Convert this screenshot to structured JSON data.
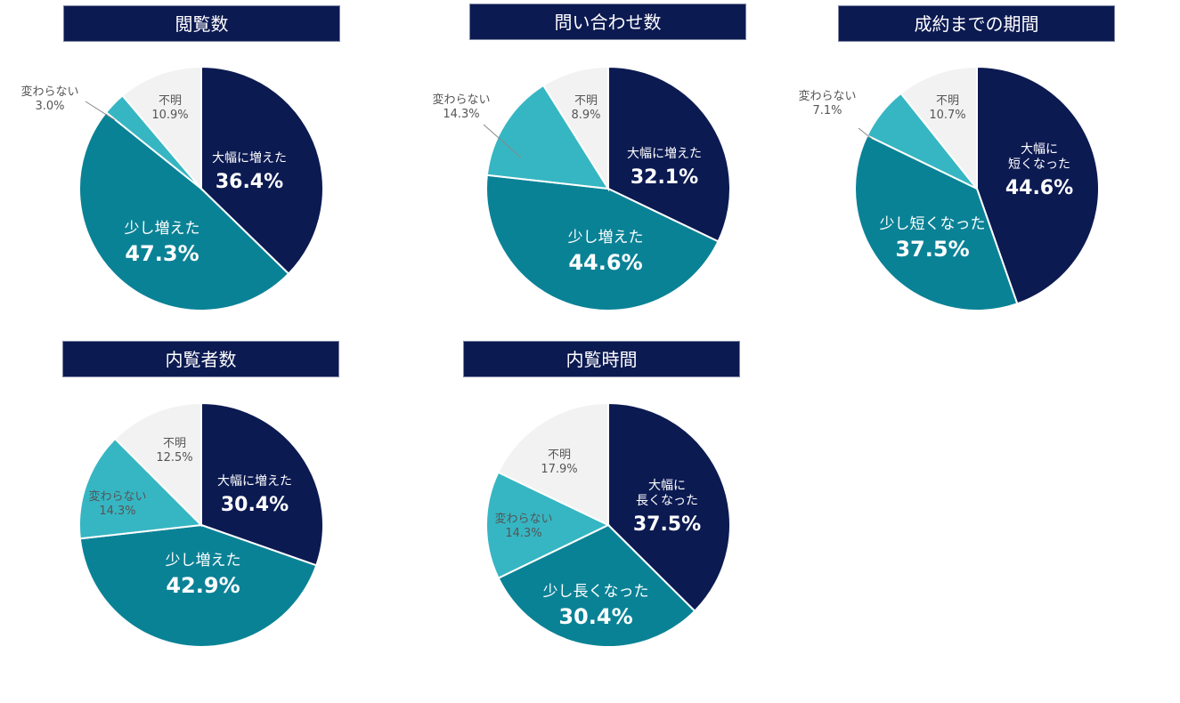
{
  "colors": {
    "title_bg": "#0c1a52",
    "large_increase": "#0c1a52",
    "slight_increase": "#0a8296",
    "no_change": "#36b6c3",
    "unknown": "#f2f2f2",
    "label_dark": "#555555",
    "label_light": "#ffffff"
  },
  "chart_data": [
    {
      "type": "pie",
      "title": "閲覧数",
      "slices": [
        {
          "label": "大幅に増えた",
          "value": 36.4,
          "display": "36.4%"
        },
        {
          "label": "少し増えた",
          "value": 47.3,
          "display": "47.3%"
        },
        {
          "label": "変わらない",
          "value": 3.0,
          "display": "3.0%"
        },
        {
          "label": "不明",
          "value": 10.9,
          "display": "10.9%"
        }
      ]
    },
    {
      "type": "pie",
      "title": "問い合わせ数",
      "slices": [
        {
          "label": "大幅に増えた",
          "value": 32.1,
          "display": "32.1%"
        },
        {
          "label": "少し増えた",
          "value": 44.6,
          "display": "44.6%"
        },
        {
          "label": "変わらない",
          "value": 14.3,
          "display": "14.3%"
        },
        {
          "label": "不明",
          "value": 8.9,
          "display": "8.9%"
        }
      ]
    },
    {
      "type": "pie",
      "title": "成約までの期間",
      "slices": [
        {
          "label": "大幅に\n短くなった",
          "value": 44.6,
          "display": "44.6%"
        },
        {
          "label": "少し短くなった",
          "value": 37.5,
          "display": "37.5%"
        },
        {
          "label": "変わらない",
          "value": 7.1,
          "display": "7.1%"
        },
        {
          "label": "不明",
          "value": 10.7,
          "display": "10.7%"
        }
      ]
    },
    {
      "type": "pie",
      "title": "内覧者数",
      "slices": [
        {
          "label": "大幅に増えた",
          "value": 30.4,
          "display": "30.4%"
        },
        {
          "label": "少し増えた",
          "value": 42.9,
          "display": "42.9%"
        },
        {
          "label": "変わらない",
          "value": 14.3,
          "display": "14.3%"
        },
        {
          "label": "不明",
          "value": 12.5,
          "display": "12.5%"
        }
      ]
    },
    {
      "type": "pie",
      "title": "内覧時間",
      "slices": [
        {
          "label": "大幅に\n長くなった",
          "value": 37.5,
          "display": "37.5%"
        },
        {
          "label": "少し長くなった",
          "value": 30.4,
          "display": "30.4%"
        },
        {
          "label": "変わらない",
          "value": 14.3,
          "display": "14.3%"
        },
        {
          "label": "不明",
          "value": 17.9,
          "display": "17.9%"
        }
      ]
    }
  ]
}
